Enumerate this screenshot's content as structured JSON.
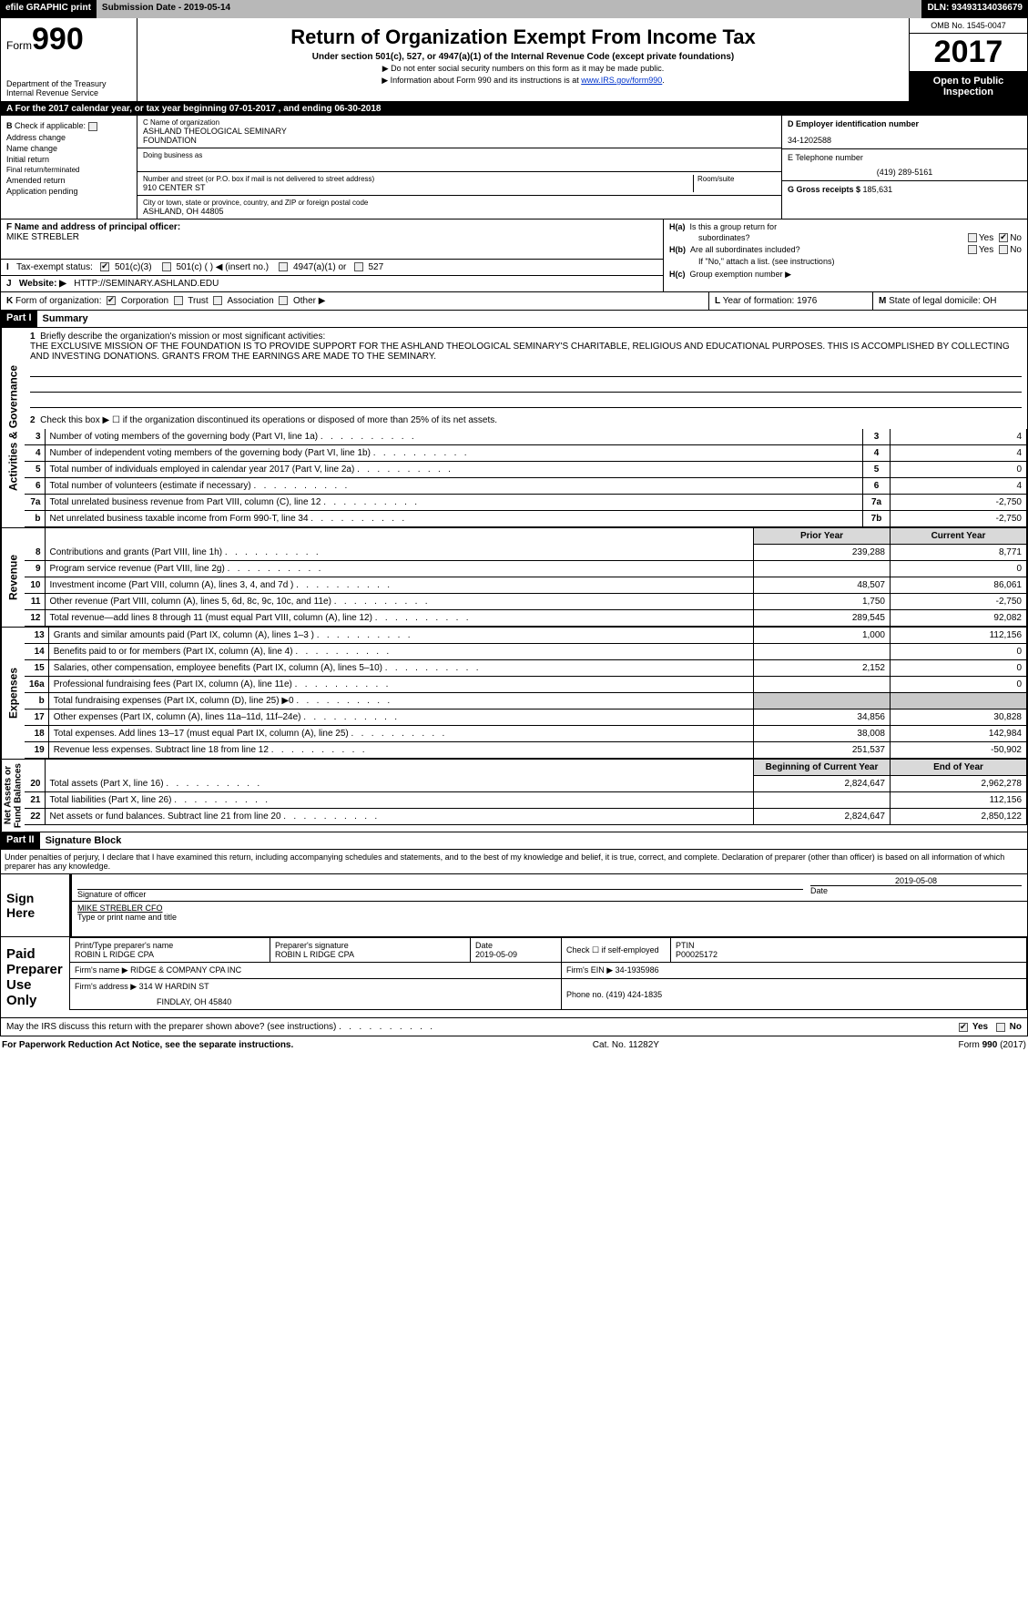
{
  "topbar": {
    "efile": "efile GRAPHIC print",
    "submission_label": "Submission Date - ",
    "submission_date": "2019-05-14",
    "dln_label": "DLN: ",
    "dln": "93493134036679"
  },
  "header": {
    "form_prefix": "Form",
    "form_number": "990",
    "dept1": "Department of the Treasury",
    "dept2": "Internal Revenue Service",
    "title": "Return of Organization Exempt From Income Tax",
    "subtitle": "Under section 501(c), 527, or 4947(a)(1) of the Internal Revenue Code (except private foundations)",
    "note1": "▶ Do not enter social security numbers on this form as it may be made public.",
    "note2_pre": "▶ Information about Form 990 and its instructions is at ",
    "note2_link": "www.IRS.gov/form990",
    "note2_post": ".",
    "omb": "OMB No. 1545-0047",
    "year": "2017",
    "open1": "Open to Public",
    "open2": "Inspection"
  },
  "barA": {
    "text_pre": "A   For the 2017 calendar year, or tax year beginning ",
    "begin": "07-01-2017",
    "mid": "         , and ending ",
    "end": "06-30-2018"
  },
  "B": {
    "label": "B",
    "check_if": "Check if applicable:",
    "items": [
      "Address change",
      "Name change",
      "Initial return",
      "Final return/terminated",
      "Amended return",
      "Application pending"
    ]
  },
  "C": {
    "name_label": "C Name of organization",
    "name1": "ASHLAND THEOLOGICAL SEMINARY",
    "name2": "FOUNDATION",
    "dba_label": "Doing business as",
    "street_label": "Number and street (or P.O. box if mail is not delivered to street address)",
    "street": "910 CENTER ST",
    "room_label": "Room/suite",
    "city_label": "City or town, state or province, country, and ZIP or foreign postal code",
    "city": "ASHLAND, OH   44805"
  },
  "D": {
    "label": "D Employer identification number",
    "value": "34-1202588"
  },
  "E": {
    "label": "E Telephone number",
    "value": "(419) 289-5161"
  },
  "G": {
    "label": "G Gross receipts $ ",
    "value": "185,631"
  },
  "F": {
    "label": "F  Name and address of principal officer:",
    "name": "MIKE STREBLER"
  },
  "H": {
    "a": "Is this a group return for",
    "a2": "subordinates?",
    "b": "Are all subordinates included?",
    "b2": "If \"No,\" attach a list. (see instructions)",
    "c": "Group exemption number ▶",
    "ha": "H(a)",
    "hb": "H(b)",
    "hc": "H(c)",
    "yes": "Yes",
    "no": "No"
  },
  "I": {
    "label": "I",
    "text": "Tax-exempt status:",
    "o1": "501(c)(3)",
    "o2": "501(c) (  ) ◀ (insert no.)",
    "o3": "4947(a)(1) or",
    "o4": "527"
  },
  "J": {
    "label": "J",
    "text": "Website: ▶",
    "value": "HTTP://SEMINARY.ASHLAND.EDU"
  },
  "K": {
    "label": "K",
    "text": "Form of organization:",
    "o1": "Corporation",
    "o2": "Trust",
    "o3": "Association",
    "o4": "Other ▶"
  },
  "L": {
    "label": "L",
    "text": "Year of formation: ",
    "value": "1976"
  },
  "M": {
    "label": "M",
    "text": "State of legal domicile: ",
    "value": "OH"
  },
  "part1": {
    "hdr": "Part I",
    "title": "Summary",
    "side1": "Activities & Governance",
    "side2": "Revenue",
    "side3": "Expenses",
    "side4": "Net Assets or\nFund Balances",
    "l1_label": "Briefly describe the organization's mission or most significant activities:",
    "l1_text": "THE EXCLUSIVE MISSION OF THE FOUNDATION IS TO PROVIDE SUPPORT FOR THE ASHLAND THEOLOGICAL SEMINARY'S CHARITABLE, RELIGIOUS AND EDUCATIONAL PURPOSES. THIS IS ACCOMPLISHED BY COLLECTING AND INVESTING DONATIONS. GRANTS FROM THE EARNINGS ARE MADE TO THE SEMINARY.",
    "l2": "Check this box ▶ ☐  if the organization discontinued its operations or disposed of more than 25% of its net assets.",
    "rows_ag": [
      {
        "n": "3",
        "d": "Number of voting members of the governing body (Part VI, line 1a)",
        "box": "3",
        "v": "4"
      },
      {
        "n": "4",
        "d": "Number of independent voting members of the governing body (Part VI, line 1b)",
        "box": "4",
        "v": "4"
      },
      {
        "n": "5",
        "d": "Total number of individuals employed in calendar year 2017 (Part V, line 2a)",
        "box": "5",
        "v": "0"
      },
      {
        "n": "6",
        "d": "Total number of volunteers (estimate if necessary)",
        "box": "6",
        "v": "4"
      },
      {
        "n": "7a",
        "d": "Total unrelated business revenue from Part VIII, column (C), line 12",
        "box": "7a",
        "v": "-2,750"
      },
      {
        "n": "b",
        "d": "Net unrelated business taxable income from Form 990-T, line 34",
        "box": "7b",
        "v": "-2,750"
      }
    ],
    "col_h1": "Prior Year",
    "col_h2": "Current Year",
    "rows_rev": [
      {
        "n": "8",
        "d": "Contributions and grants (Part VIII, line 1h)",
        "p": "239,288",
        "c": "8,771"
      },
      {
        "n": "9",
        "d": "Program service revenue (Part VIII, line 2g)",
        "p": "",
        "c": "0"
      },
      {
        "n": "10",
        "d": "Investment income (Part VIII, column (A), lines 3, 4, and 7d )",
        "p": "48,507",
        "c": "86,061"
      },
      {
        "n": "11",
        "d": "Other revenue (Part VIII, column (A), lines 5, 6d, 8c, 9c, 10c, and 11e)",
        "p": "1,750",
        "c": "-2,750"
      },
      {
        "n": "12",
        "d": "Total revenue—add lines 8 through 11 (must equal Part VIII, column (A), line 12)",
        "p": "289,545",
        "c": "92,082"
      }
    ],
    "rows_exp": [
      {
        "n": "13",
        "d": "Grants and similar amounts paid (Part IX, column (A), lines 1–3 )",
        "p": "1,000",
        "c": "112,156"
      },
      {
        "n": "14",
        "d": "Benefits paid to or for members (Part IX, column (A), line 4)",
        "p": "",
        "c": "0"
      },
      {
        "n": "15",
        "d": "Salaries, other compensation, employee benefits (Part IX, column (A), lines 5–10)",
        "p": "2,152",
        "c": "0"
      },
      {
        "n": "16a",
        "d": "Professional fundraising fees (Part IX, column (A), line 11e)",
        "p": "",
        "c": "0"
      },
      {
        "n": "b",
        "d": "Total fundraising expenses (Part IX, column (D), line 25) ▶0",
        "p": "SHADE",
        "c": "SHADE"
      },
      {
        "n": "17",
        "d": "Other expenses (Part IX, column (A), lines 11a–11d, 11f–24e)",
        "p": "34,856",
        "c": "30,828"
      },
      {
        "n": "18",
        "d": "Total expenses. Add lines 13–17 (must equal Part IX, column (A), line 25)",
        "p": "38,008",
        "c": "142,984"
      },
      {
        "n": "19",
        "d": "Revenue less expenses. Subtract line 18 from line 12",
        "p": "251,537",
        "c": "-50,902"
      }
    ],
    "col_h3": "Beginning of Current Year",
    "col_h4": "End of Year",
    "rows_net": [
      {
        "n": "20",
        "d": "Total assets (Part X, line 16)",
        "p": "2,824,647",
        "c": "2,962,278"
      },
      {
        "n": "21",
        "d": "Total liabilities (Part X, line 26)",
        "p": "",
        "c": "112,156"
      },
      {
        "n": "22",
        "d": "Net assets or fund balances. Subtract line 21 from line 20",
        "p": "2,824,647",
        "c": "2,850,122"
      }
    ]
  },
  "part2": {
    "hdr": "Part II",
    "title": "Signature Block",
    "pen": "Under penalties of perjury, I declare that I have examined this return, including accompanying schedules and statements, and to the best of my knowledge and belief, it is true, correct, and complete. Declaration of preparer (other than officer) is based on all information of which preparer has any knowledge.",
    "sign_here": "Sign Here",
    "sig_of_officer": "Signature of officer",
    "date_lbl": "Date",
    "date": "2019-05-08",
    "name_title": "MIKE STREBLER  CFO",
    "type_name": "Type or print name and title",
    "paid": "Paid Preparer Use Only",
    "pt_name_lbl": "Print/Type preparer's name",
    "pt_name": "ROBIN L RIDGE CPA",
    "pt_sig_lbl": "Preparer's signature",
    "pt_sig": "ROBIN L RIDGE CPA",
    "pt_date_lbl": "Date",
    "pt_date": "2019-05-09",
    "pt_check": "Check ☐ if self-employed",
    "ptin_lbl": "PTIN",
    "ptin": "P00025172",
    "firm_name_lbl": "Firm's name    ▶ ",
    "firm_name": "RIDGE & COMPANY CPA INC",
    "firm_ein_lbl": "Firm's EIN ▶ ",
    "firm_ein": "34-1935986",
    "firm_addr_lbl": "Firm's address ▶ ",
    "firm_addr1": "314 W HARDIN ST",
    "firm_addr2": "FINDLAY, OH   45840",
    "phone_lbl": "Phone no. ",
    "phone": "(419) 424-1835",
    "discuss": "May the IRS discuss this return with the preparer shown above? (see instructions)",
    "yes": "Yes",
    "no": "No"
  },
  "footer": {
    "left": "For Paperwork Reduction Act Notice, see the separate instructions.",
    "mid": "Cat. No. 11282Y",
    "right": "Form 990 (2017)"
  }
}
